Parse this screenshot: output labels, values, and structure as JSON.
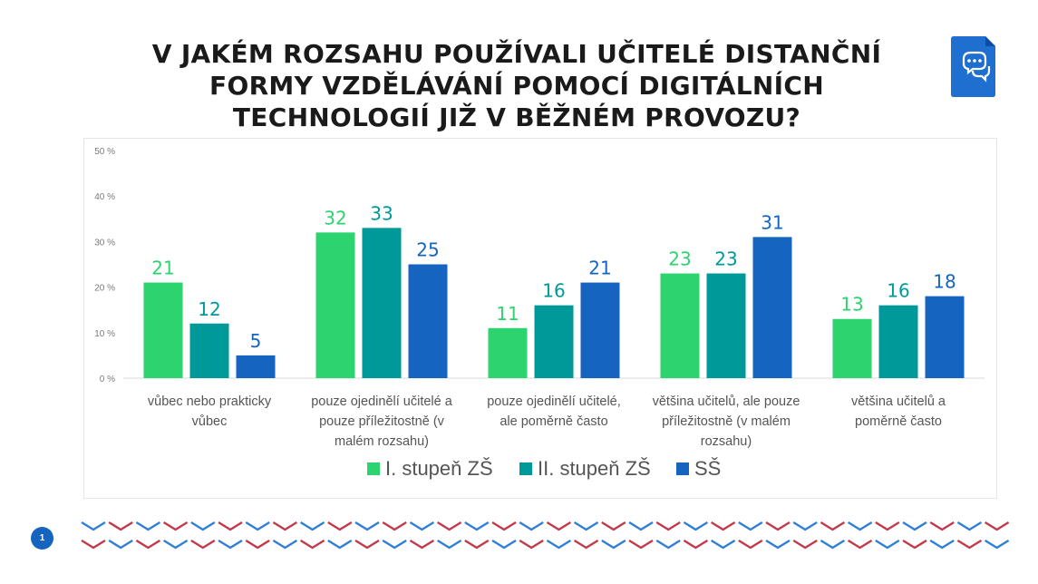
{
  "title_lines": [
    "V JAKÉM ROZSAHU POUŽÍVALI UČITELÉ DISTANČNÍ",
    "FORMY VZDĚLÁVÁNÍ POMOCÍ DIGITÁLNÍCH",
    "TECHNOLOGIÍ JIŽ V BĚŽNÉM PROVOZU?"
  ],
  "page_number": "1",
  "logo_icon": "chat-bubbles-document-icon",
  "chart_data": {
    "type": "bar",
    "categories": [
      [
        "vůbec nebo prakticky",
        "vůbec"
      ],
      [
        "pouze ojedinělí učitelé a",
        "pouze příležitostně (v",
        "malém rozsahu)"
      ],
      [
        "pouze ojedinělí učitelé,",
        "ale poměrně často"
      ],
      [
        "většina učitelů, ale pouze",
        "příležitostně (v malém",
        "rozsahu)"
      ],
      [
        "většina učitelů a",
        "poměrně často"
      ]
    ],
    "series": [
      {
        "name": "I. stupeň ZŠ",
        "color": "#2dd36f",
        "values": [
          21,
          32,
          11,
          23,
          13
        ]
      },
      {
        "name": "II. stupeň ZŠ",
        "color": "#00999a",
        "values": [
          12,
          33,
          16,
          23,
          16
        ]
      },
      {
        "name": "SŠ",
        "color": "#1565c0",
        "values": [
          5,
          25,
          21,
          31,
          18
        ]
      }
    ],
    "yticks": [
      "0 %",
      "10 %",
      "20 %",
      "30 %",
      "40 %",
      "50 %"
    ],
    "ylim": [
      0,
      50
    ],
    "legend_position": "bottom",
    "grid": false
  }
}
